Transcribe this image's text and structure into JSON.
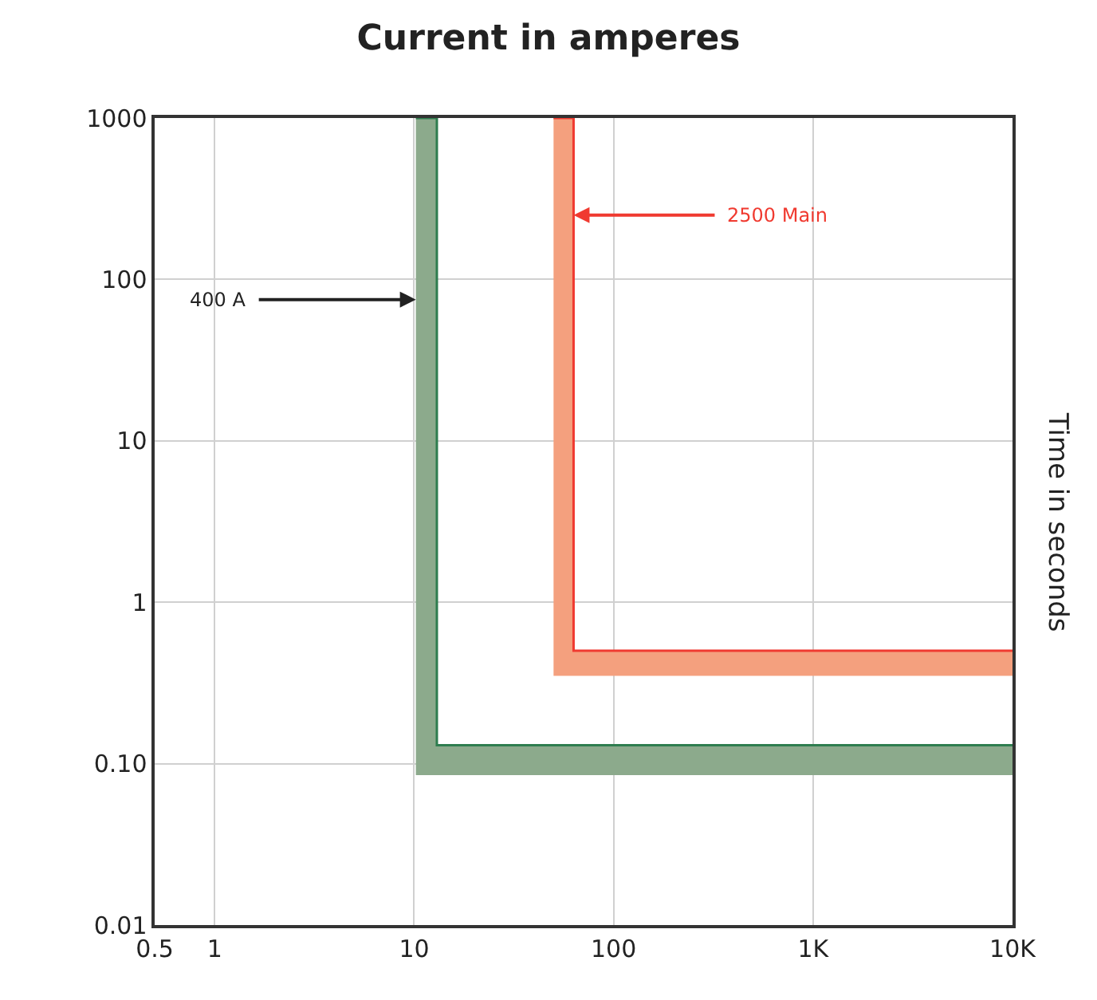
{
  "chart_data": {
    "type": "line",
    "title": "Current in amperes",
    "ylabel": "Time in seconds",
    "log": "xy",
    "grid": true,
    "xlim": [
      0.5,
      10000
    ],
    "xticks": [
      0.5,
      1,
      10,
      100,
      {
        "value": 1000,
        "label": "1K"
      },
      {
        "value": 10000,
        "label": "10K"
      }
    ],
    "ylim": [
      0.01,
      1000
    ],
    "yticks": [
      0.01,
      {
        "value": 0.1,
        "label": "0.10"
      },
      1,
      10,
      100,
      1000
    ],
    "series": [
      {
        "color": "#2e7d4f",
        "x": [
          10.2,
          13,
          13,
          10000
        ],
        "values": [
          1000,
          1000,
          0.13,
          0.13
        ],
        "lower": [
          0.085,
          0.085,
          0.085,
          0.085
        ],
        "upper": [
          1000,
          1000,
          0.13,
          0.13
        ]
      },
      {
        "color": "#f03a30",
        "x": [
          50,
          63,
          63,
          10000
        ],
        "values": [
          1000,
          1000,
          0.5,
          0.5
        ],
        "lower": [
          0.35,
          0.35,
          0.35,
          0.35
        ],
        "upper": [
          1000,
          1000,
          0.5,
          0.5
        ]
      }
    ],
    "annotations": [
      {
        "text": "400 A",
        "x": 10.2,
        "y": 75
      },
      {
        "text": "2500 Main",
        "x": 63,
        "y": 250
      }
    ]
  }
}
